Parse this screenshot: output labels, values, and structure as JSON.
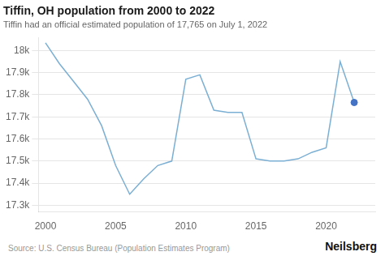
{
  "chart_data": {
    "type": "line",
    "title": "Tiffin, OH population from 2000 to 2022",
    "subtitle": "Tiffin had an official estimated population of 17,765 on July 1, 2022",
    "source": "Source: U.S. Census Bureau (Population Estimates Program)",
    "branding": "Neilsberg",
    "x": [
      2000,
      2001,
      2002,
      2003,
      2004,
      2005,
      2006,
      2007,
      2008,
      2009,
      2010,
      2011,
      2012,
      2013,
      2014,
      2015,
      2016,
      2017,
      2018,
      2019,
      2020,
      2021,
      2022
    ],
    "series": [
      {
        "type": "line",
        "color": "#7bafd4",
        "values": [
          18035,
          17940,
          17860,
          17780,
          17660,
          17480,
          17350,
          17420,
          17480,
          17500,
          17870,
          17890,
          17730,
          17720,
          17720,
          17510,
          17500,
          17500,
          17510,
          17540,
          17560,
          17950,
          17765
        ]
      },
      {
        "type": "scatter",
        "color": "#4472c4",
        "x": [
          2022
        ],
        "values": [
          17765
        ]
      }
    ],
    "xlim": [
      1999.5,
      2023.5
    ],
    "xticks": [
      2000,
      2005,
      2010,
      2015,
      2020
    ],
    "ylim": [
      17270,
      18060
    ],
    "yticks": [
      {
        "value": 17300,
        "label": "17.3k"
      },
      {
        "value": 17400,
        "label": "17.4k"
      },
      {
        "value": 17500,
        "label": "17.5k"
      },
      {
        "value": 17600,
        "label": "17.6k"
      },
      {
        "value": 17700,
        "label": "17.7k"
      },
      {
        "value": 17800,
        "label": "17.8k"
      },
      {
        "value": 17900,
        "label": "17.9k"
      },
      {
        "value": 18000,
        "label": "18k"
      }
    ],
    "grid": "y"
  }
}
